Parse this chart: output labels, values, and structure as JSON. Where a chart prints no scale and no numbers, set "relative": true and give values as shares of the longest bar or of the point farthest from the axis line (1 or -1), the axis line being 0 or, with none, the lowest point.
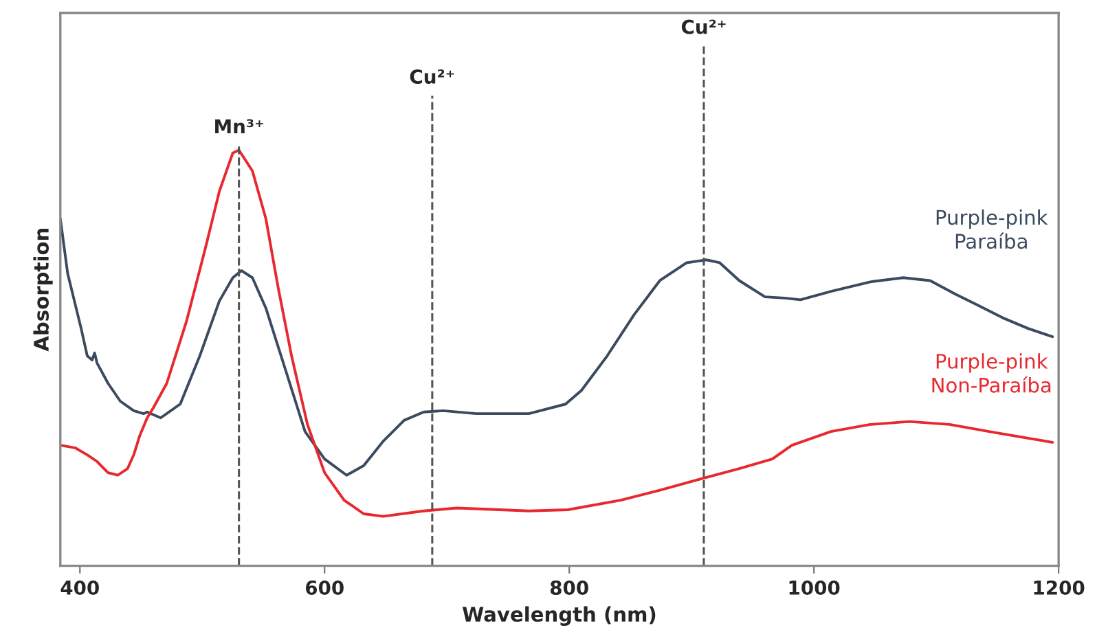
{
  "chart_data": {
    "type": "line",
    "xlabel": "Wavelength (nm)",
    "ylabel": "Absorption",
    "relative": true,
    "xlim": [
      384,
      1200
    ],
    "xticks": [
      400,
      600,
      800,
      1000,
      1200
    ],
    "tick_labels": "x",
    "grid": false,
    "legend": false,
    "line_style": "solid",
    "marker": "none",
    "ref_lines": [
      {
        "axis": "x",
        "value": 530,
        "label": "Mn³⁺",
        "color": "#555555",
        "line_style": "dashed"
      },
      {
        "axis": "x",
        "value": 688,
        "label": "Cu²⁺",
        "color": "#555555",
        "line_style": "dashed"
      },
      {
        "axis": "x",
        "value": 910,
        "label": "Cu²⁺",
        "color": "#555555",
        "line_style": "dashed"
      }
    ],
    "series": [
      {
        "name": "Purple-pink\nParaíba",
        "color": "#3b4a5e",
        "x": [
          384,
          390,
          401,
          406,
          410,
          412,
          414,
          423,
          433,
          444,
          452,
          455,
          466,
          482,
          498,
          514,
          525,
          532,
          541,
          552,
          568,
          584,
          600,
          618,
          632,
          648,
          665,
          681,
          697,
          724,
          767,
          797,
          810,
          831,
          853,
          874,
          896,
          912,
          923,
          939,
          960,
          976,
          989,
          1014,
          1046,
          1073,
          1095,
          1116,
          1132,
          1154,
          1175,
          1195
        ],
        "values": [
          0.835,
          0.703,
          0.571,
          0.505,
          0.495,
          0.512,
          0.488,
          0.439,
          0.396,
          0.373,
          0.366,
          0.37,
          0.356,
          0.389,
          0.505,
          0.637,
          0.693,
          0.71,
          0.693,
          0.62,
          0.472,
          0.323,
          0.257,
          0.218,
          0.241,
          0.3,
          0.35,
          0.37,
          0.373,
          0.366,
          0.366,
          0.389,
          0.422,
          0.505,
          0.604,
          0.686,
          0.729,
          0.736,
          0.729,
          0.686,
          0.647,
          0.644,
          0.64,
          0.66,
          0.683,
          0.693,
          0.686,
          0.653,
          0.63,
          0.597,
          0.571,
          0.551
        ]
      },
      {
        "name": "Purple-pink\nNon-Paraíba",
        "color": "#e8282f",
        "x": [
          384,
          396,
          406,
          414,
          423,
          431,
          439,
          444,
          449,
          455,
          460,
          471,
          487,
          503,
          514,
          525,
          530,
          541,
          552,
          562,
          573,
          586,
          600,
          616,
          632,
          648,
          681,
          708,
          767,
          799,
          842,
          874,
          906,
          939,
          966,
          982,
          1014,
          1046,
          1078,
          1111,
          1143,
          1175,
          1195
        ],
        "values": [
          0.29,
          0.284,
          0.267,
          0.251,
          0.224,
          0.218,
          0.234,
          0.267,
          0.314,
          0.356,
          0.38,
          0.439,
          0.587,
          0.769,
          0.901,
          0.993,
          1.0,
          0.95,
          0.835,
          0.67,
          0.505,
          0.34,
          0.224,
          0.158,
          0.125,
          0.119,
          0.132,
          0.139,
          0.132,
          0.135,
          0.158,
          0.182,
          0.208,
          0.234,
          0.257,
          0.29,
          0.323,
          0.34,
          0.347,
          0.34,
          0.323,
          0.307,
          0.297
        ]
      }
    ]
  }
}
